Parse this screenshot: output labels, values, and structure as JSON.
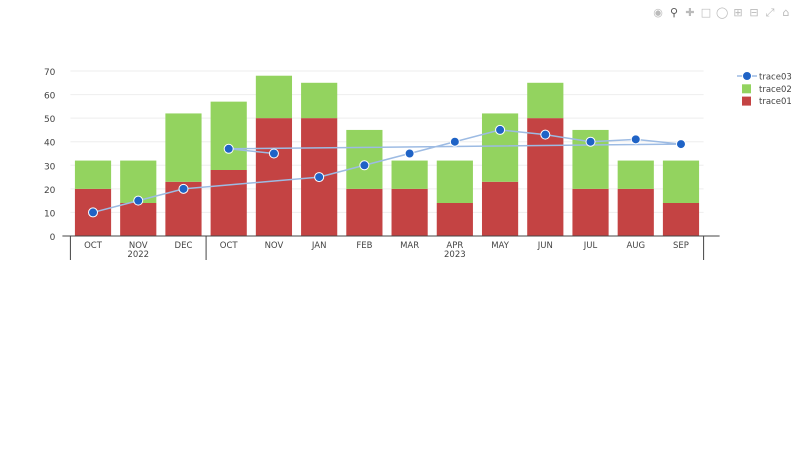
{
  "modebar": {
    "icons": [
      "camera-icon",
      "zoom-icon",
      "pan-icon",
      "box-select-icon",
      "lasso-icon",
      "zoom-in-icon",
      "zoom-out-icon",
      "autoscale-icon",
      "home-icon"
    ]
  },
  "colors": {
    "trace01": "#c44343",
    "trace02": "#93d35f",
    "trace03_line": "#9dbbe3",
    "trace03_marker": "#1f63c6"
  },
  "chart_data": {
    "type": "bar",
    "barmode": "stack",
    "categories": [
      {
        "year": "2022",
        "month": "OCT"
      },
      {
        "year": "2022",
        "month": "NOV"
      },
      {
        "year": "2022",
        "month": "DEC"
      },
      {
        "year": "2023",
        "month": "OCT"
      },
      {
        "year": "2023",
        "month": "NOV"
      },
      {
        "year": "2023",
        "month": "JAN"
      },
      {
        "year": "2023",
        "month": "FEB"
      },
      {
        "year": "2023",
        "month": "MAR"
      },
      {
        "year": "2023",
        "month": "APR"
      },
      {
        "year": "2023",
        "month": "MAY"
      },
      {
        "year": "2023",
        "month": "JUN"
      },
      {
        "year": "2023",
        "month": "JUL"
      },
      {
        "year": "2023",
        "month": "AUG"
      },
      {
        "year": "2023",
        "month": "SEP"
      }
    ],
    "groups": [
      "2022",
      "2023"
    ],
    "series": [
      {
        "name": "trace01",
        "type": "bar",
        "values": [
          20,
          14,
          23,
          28,
          50,
          50,
          20,
          20,
          14,
          23,
          50,
          20,
          20,
          14
        ]
      },
      {
        "name": "trace02",
        "type": "bar",
        "values": [
          12,
          18,
          29,
          29,
          18,
          15,
          25,
          12,
          18,
          29,
          15,
          25,
          12,
          18
        ]
      },
      {
        "name": "trace03",
        "type": "line+markers",
        "points": [
          {
            "year": "2022",
            "month": "OCT",
            "y": 10
          },
          {
            "year": "2022",
            "month": "NOV",
            "y": 15
          },
          {
            "year": "2022",
            "month": "DEC",
            "y": 20
          },
          {
            "year": "2023",
            "month": "JAN",
            "y": 25
          },
          {
            "year": "2023",
            "month": "FEB",
            "y": 30
          },
          {
            "year": "2023",
            "month": "MAR",
            "y": 35
          },
          {
            "year": "2023",
            "month": "APR",
            "y": 40
          },
          {
            "year": "2023",
            "month": "MAY",
            "y": 45
          },
          {
            "year": "2023",
            "month": "JUN",
            "y": 43
          },
          {
            "year": "2023",
            "month": "JUL",
            "y": 40
          },
          {
            "year": "2023",
            "month": "AUG",
            "y": 41
          },
          {
            "year": "2023",
            "month": "SEP",
            "y": 39
          },
          {
            "year": "2023",
            "month": "OCT",
            "y": 37
          },
          {
            "year": "2023",
            "month": "NOV",
            "y": 35
          }
        ]
      }
    ],
    "ylim": [
      0,
      70
    ],
    "yticks": [
      0,
      10,
      20,
      30,
      40,
      50,
      60,
      70
    ],
    "grid": true,
    "legend": {
      "placement": "top-right",
      "order": [
        "trace03",
        "trace02",
        "trace01"
      ]
    }
  }
}
